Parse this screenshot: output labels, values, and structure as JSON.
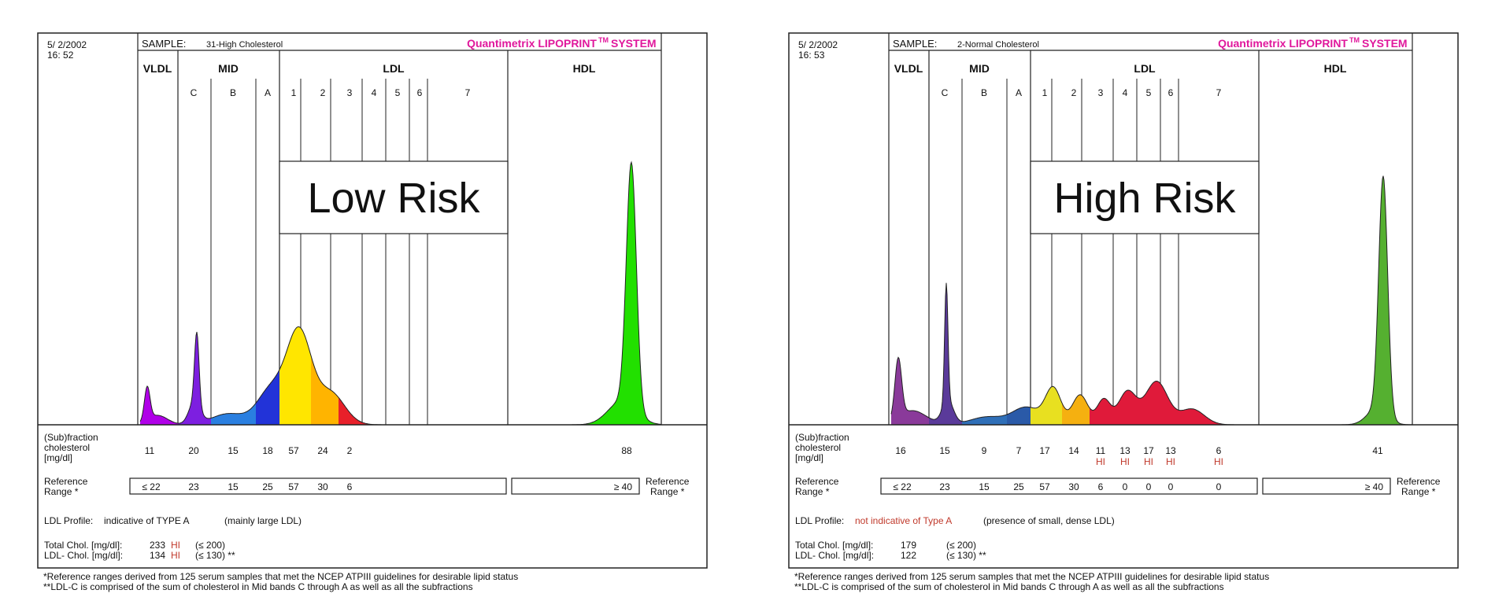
{
  "panels": [
    {
      "date": "5/ 2/2002",
      "time": "16: 52",
      "sample_label": "SAMPLE:",
      "sample_name": "31-High Cholesterol",
      "brand": "Quantimetrix LIPOPRINT",
      "brand_tm": "TM",
      "brand_system": "SYSTEM",
      "risk_label": "Low Risk",
      "groups": [
        "VLDL",
        "MID",
        "LDL",
        "HDL"
      ],
      "bands": [
        "C",
        "B",
        "A",
        "1",
        "2",
        "3",
        "4",
        "5",
        "6",
        "7"
      ],
      "fraction_label": [
        "(Sub)fraction",
        "cholesterol",
        "[mg/dl]"
      ],
      "fraction_values": [
        "11",
        "20",
        "15",
        "18",
        "57",
        "24",
        "2",
        "",
        "",
        "",
        "",
        "88"
      ],
      "fraction_flags": [
        "",
        "",
        "",
        "",
        "",
        "",
        "",
        "",
        "",
        "",
        "",
        ""
      ],
      "reference_label": [
        "Reference",
        "Range *"
      ],
      "reference_values": [
        "≤ 22",
        "23",
        "15",
        "25",
        "57",
        "30",
        "6"
      ],
      "hdl_reference": "≥ 40",
      "profile_label": "LDL Profile:",
      "profile_text": "indicative of TYPE A",
      "profile_text_color": "#111111",
      "profile_note": "(mainly large LDL)",
      "total_chol_label": "Total Chol. [mg/dl]:",
      "total_chol_value": "233",
      "total_chol_flag": "HI",
      "total_chol_ref": "(≤ 200)",
      "ldl_chol_label": "LDL- Chol. [mg/dl]:",
      "ldl_chol_value": "134",
      "ldl_chol_flag": "HI",
      "ldl_chol_ref": "(≤ 130) **",
      "footnote1": "*Reference ranges derived from 125 serum samples that met the NCEP ATPIII guidelines for desirable lipid status",
      "footnote2": "**LDL-C is comprised of the sum of cholesterol in Mid bands C through A as well as all the subfractions"
    },
    {
      "date": "5/ 2/2002",
      "time": "16: 53",
      "sample_label": "SAMPLE:",
      "sample_name": "2-Normal Cholesterol",
      "brand": "Quantimetrix LIPOPRINT",
      "brand_tm": "TM",
      "brand_system": "SYSTEM",
      "risk_label": "High Risk",
      "groups": [
        "VLDL",
        "MID",
        "LDL",
        "HDL"
      ],
      "bands": [
        "C",
        "B",
        "A",
        "1",
        "2",
        "3",
        "4",
        "5",
        "6",
        "7"
      ],
      "fraction_label": [
        "(Sub)fraction",
        "cholesterol",
        "[mg/dl]"
      ],
      "fraction_values": [
        "16",
        "15",
        "9",
        "7",
        "17",
        "14",
        "11",
        "13",
        "17",
        "13",
        "6",
        "41"
      ],
      "fraction_flags": [
        "",
        "",
        "",
        "",
        "",
        "",
        "HI",
        "HI",
        "HI",
        "HI",
        "HI",
        ""
      ],
      "reference_label": [
        "Reference",
        "Range *"
      ],
      "reference_values": [
        "≤ 22",
        "23",
        "15",
        "25",
        "57",
        "30",
        "6",
        "0",
        "0",
        "0",
        "0"
      ],
      "hdl_reference": "≥ 40",
      "profile_label": "LDL Profile:",
      "profile_text": "not indicative of Type A",
      "profile_text_color": "#c0392b",
      "profile_note": "(presence of small, dense LDL)",
      "total_chol_label": "Total Chol. [mg/dl]:",
      "total_chol_value": "179",
      "total_chol_flag": "",
      "total_chol_ref": "(≤ 200)",
      "ldl_chol_label": "LDL- Chol. [mg/dl]:",
      "ldl_chol_value": "122",
      "ldl_chol_flag": "",
      "ldl_chol_ref": "(≤ 130) **",
      "footnote1": "*Reference ranges derived from 125 serum samples that met the NCEP ATPIII guidelines for desirable lipid status",
      "footnote2": "**LDL-C is comprised of the sum of cholesterol in Mid bands C through A as well as all the subfractions"
    }
  ],
  "chart_data": [
    {
      "type": "area",
      "title": "",
      "categories": [
        "VLDL",
        "C",
        "B",
        "A",
        "1",
        "2",
        "3",
        "4",
        "5",
        "6",
        "7",
        "HDL"
      ],
      "values": [
        11,
        20,
        15,
        18,
        57,
        24,
        2,
        0,
        0,
        0,
        0,
        88
      ],
      "unit": "mg/dl",
      "grid": false
    },
    {
      "type": "area",
      "title": "",
      "categories": [
        "VLDL",
        "C",
        "B",
        "A",
        "1",
        "2",
        "3",
        "4",
        "5",
        "6",
        "7",
        "HDL"
      ],
      "values": [
        16,
        15,
        9,
        7,
        17,
        14,
        11,
        13,
        17,
        13,
        6,
        41
      ],
      "unit": "mg/dl",
      "grid": false
    }
  ],
  "colors": {
    "vldl": "#b000e8",
    "c": "#7d1fe0",
    "b": "#2a7fe0",
    "a": "#2233d8",
    "band1": "#ffe600",
    "band2": "#ffb400",
    "band3": "#e8202a",
    "hdl": "#22e000",
    "brand": "#e0189c",
    "hi": "#c0392b",
    "p2_vldl": "#8a3a9a",
    "p2_c": "#5a3a9a",
    "p2_b": "#2f6fb8",
    "p2_a": "#2a5aa8",
    "p2_band1": "#e8e020",
    "p2_band2": "#f5b010",
    "p2_ldl_small": "#e01a3a",
    "p2_hdl": "#55b030"
  }
}
